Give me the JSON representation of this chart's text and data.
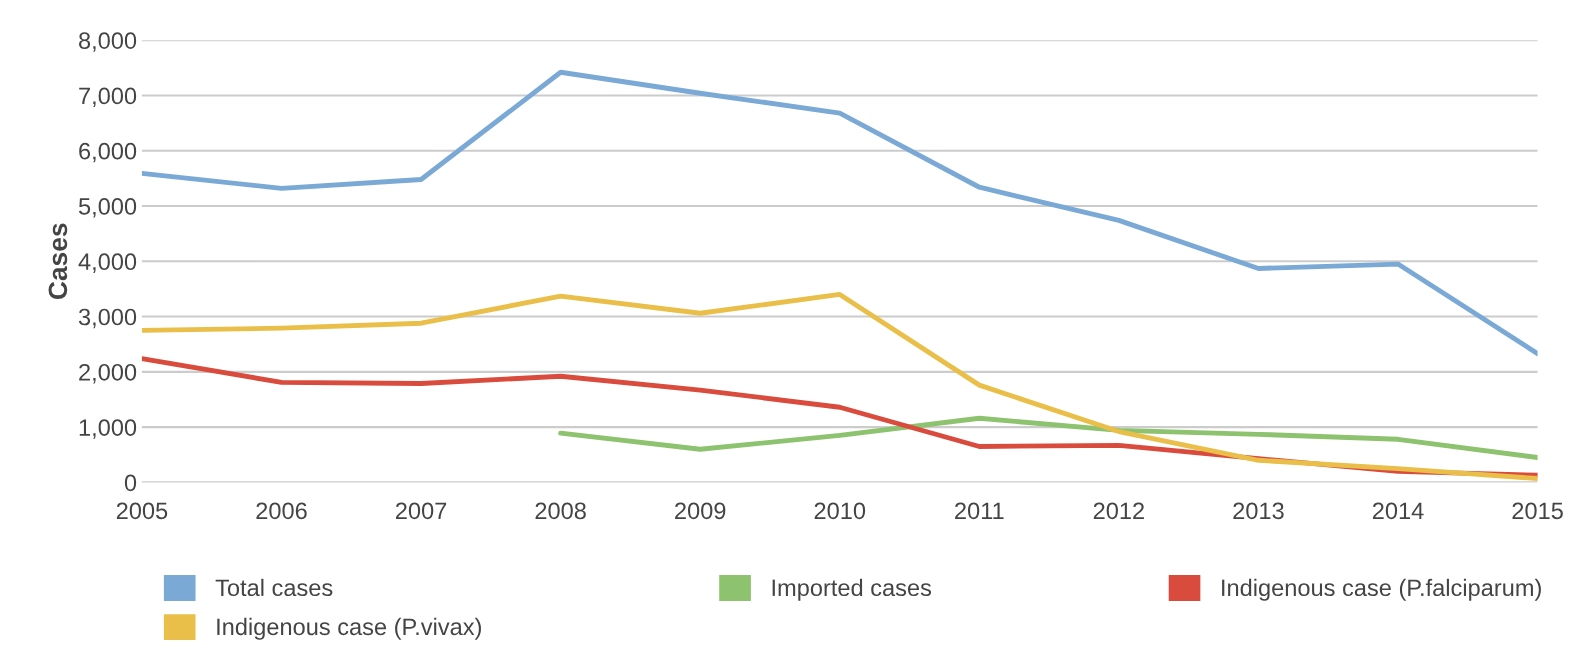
{
  "chart_data": {
    "type": "line",
    "ylabel": "Cases",
    "x": [
      2005,
      2006,
      2007,
      2008,
      2009,
      2010,
      2011,
      2012,
      2013,
      2014,
      2015
    ],
    "series": [
      {
        "name": "Total cases",
        "color": "#7aa9d6",
        "values": [
          5590,
          5320,
          5480,
          7420,
          7040,
          6680,
          5340,
          4740,
          3870,
          3950,
          2330
        ]
      },
      {
        "name": "Imported cases",
        "color": "#8dc26f",
        "values": [
          null,
          null,
          null,
          890,
          600,
          850,
          1160,
          940,
          870,
          780,
          450
        ]
      },
      {
        "name": "Indigenous case (P.falciparum)",
        "color": "#d94c3d",
        "values": [
          2240,
          1810,
          1790,
          1920,
          1670,
          1360,
          650,
          670,
          430,
          200,
          130
        ]
      },
      {
        "name": "Indigenous case (P.vivax)",
        "color": "#e9bf4a",
        "values": [
          2750,
          2790,
          2880,
          3370,
          3060,
          3400,
          1760,
          920,
          400,
          250,
          70
        ]
      }
    ],
    "xlim": [
      2005,
      2015
    ],
    "xticks": [
      2005,
      2006,
      2007,
      2008,
      2009,
      2010,
      2011,
      2012,
      2013,
      2014,
      2015
    ],
    "ylim": [
      0,
      8000
    ],
    "yticks": [
      0,
      {
        "value": 1000,
        "label": "1,000"
      },
      {
        "value": 2000,
        "label": "2,000"
      },
      {
        "value": 3000,
        "label": "3,000"
      },
      {
        "value": 4000,
        "label": "4,000"
      },
      {
        "value": 5000,
        "label": "5,000"
      },
      {
        "value": 6000,
        "label": "6,000"
      },
      {
        "value": 7000,
        "label": "7,000"
      },
      {
        "value": 8000,
        "label": "8,000"
      }
    ],
    "grid": "y",
    "legend": "bottom",
    "marker": "none",
    "line_style": "solid"
  }
}
